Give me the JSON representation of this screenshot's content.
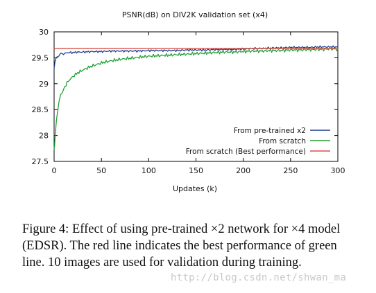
{
  "chart_data": {
    "type": "line",
    "title": "PSNR(dB) on DIV2K validation set (x4)",
    "xlabel": "Updates (k)",
    "ylabel": "",
    "xlim": [
      0,
      300
    ],
    "ylim": [
      27.5,
      30
    ],
    "x_ticks": [
      0,
      50,
      100,
      150,
      200,
      250,
      300
    ],
    "y_ticks": [
      27.5,
      28,
      28.5,
      29,
      29.5,
      30
    ],
    "y_tick_labels": [
      "27.5",
      "28",
      "28.5",
      "29",
      "29.5",
      "30"
    ],
    "legend_position": "bottom-right",
    "grid": false,
    "series": [
      {
        "name": "From pre-trained x2",
        "color": "#1f3f8f",
        "x": [
          0,
          1,
          2,
          3,
          5,
          7,
          10,
          15,
          20,
          25,
          30,
          40,
          50,
          60,
          70,
          80,
          90,
          100,
          110,
          120,
          130,
          140,
          150,
          160,
          170,
          180,
          190,
          200,
          210,
          220,
          230,
          240,
          250,
          260,
          270,
          280,
          290,
          300
        ],
        "y": [
          29.3,
          29.42,
          29.48,
          29.52,
          29.55,
          29.57,
          29.58,
          29.6,
          29.6,
          29.61,
          29.61,
          29.62,
          29.62,
          29.63,
          29.63,
          29.63,
          29.63,
          29.64,
          29.64,
          29.64,
          29.64,
          29.65,
          29.65,
          29.65,
          29.66,
          29.66,
          29.66,
          29.67,
          29.68,
          29.68,
          29.69,
          29.69,
          29.7,
          29.7,
          29.7,
          29.71,
          29.71,
          29.71
        ]
      },
      {
        "name": "From scratch",
        "color": "#21a035",
        "x": [
          0,
          1,
          2,
          3,
          5,
          7,
          10,
          15,
          20,
          25,
          30,
          40,
          50,
          60,
          70,
          80,
          90,
          100,
          110,
          120,
          130,
          140,
          150,
          160,
          170,
          180,
          190,
          200,
          210,
          220,
          230,
          240,
          250,
          260,
          270,
          280,
          290,
          300
        ],
        "y": [
          27.7,
          27.95,
          28.2,
          28.4,
          28.62,
          28.78,
          28.9,
          29.05,
          29.14,
          29.21,
          29.26,
          29.34,
          29.4,
          29.44,
          29.47,
          29.49,
          29.51,
          29.53,
          29.54,
          29.55,
          29.56,
          29.57,
          29.58,
          29.59,
          29.6,
          29.61,
          29.61,
          29.62,
          29.63,
          29.63,
          29.64,
          29.64,
          29.65,
          29.65,
          29.66,
          29.66,
          29.67,
          29.67
        ]
      },
      {
        "name": "From scratch (Best performance)",
        "color": "#d94f45",
        "x": [
          0,
          300
        ],
        "y": [
          29.68,
          29.68
        ]
      }
    ]
  },
  "caption": "Figure 4: Effect of using pre-trained ×2 network for ×4 model (EDSR). The red line indicates the best performance of green line. 10 images are used for validation during training.",
  "watermark": "http://blog.csdn.net/shwan_ma"
}
